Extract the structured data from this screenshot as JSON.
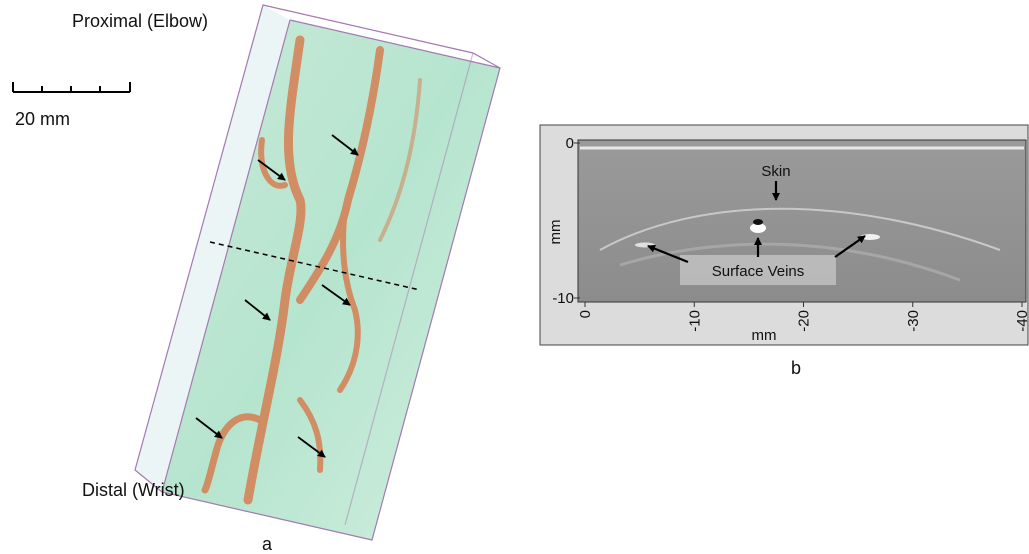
{
  "panel_a": {
    "top_label": "Proximal (Elbow)",
    "scale_label": "20 mm",
    "bottom_label": "Distal (Wrist)",
    "caption": "a"
  },
  "panel_b": {
    "skin_label": "Skin",
    "veins_label": "Surface Veins",
    "y_axis_label": "mm",
    "x_axis_label": "mm",
    "y_ticks": [
      "0",
      "-10"
    ],
    "x_ticks": [
      "0",
      "-10",
      "-20",
      "-30",
      "-40"
    ],
    "caption": "b"
  }
}
